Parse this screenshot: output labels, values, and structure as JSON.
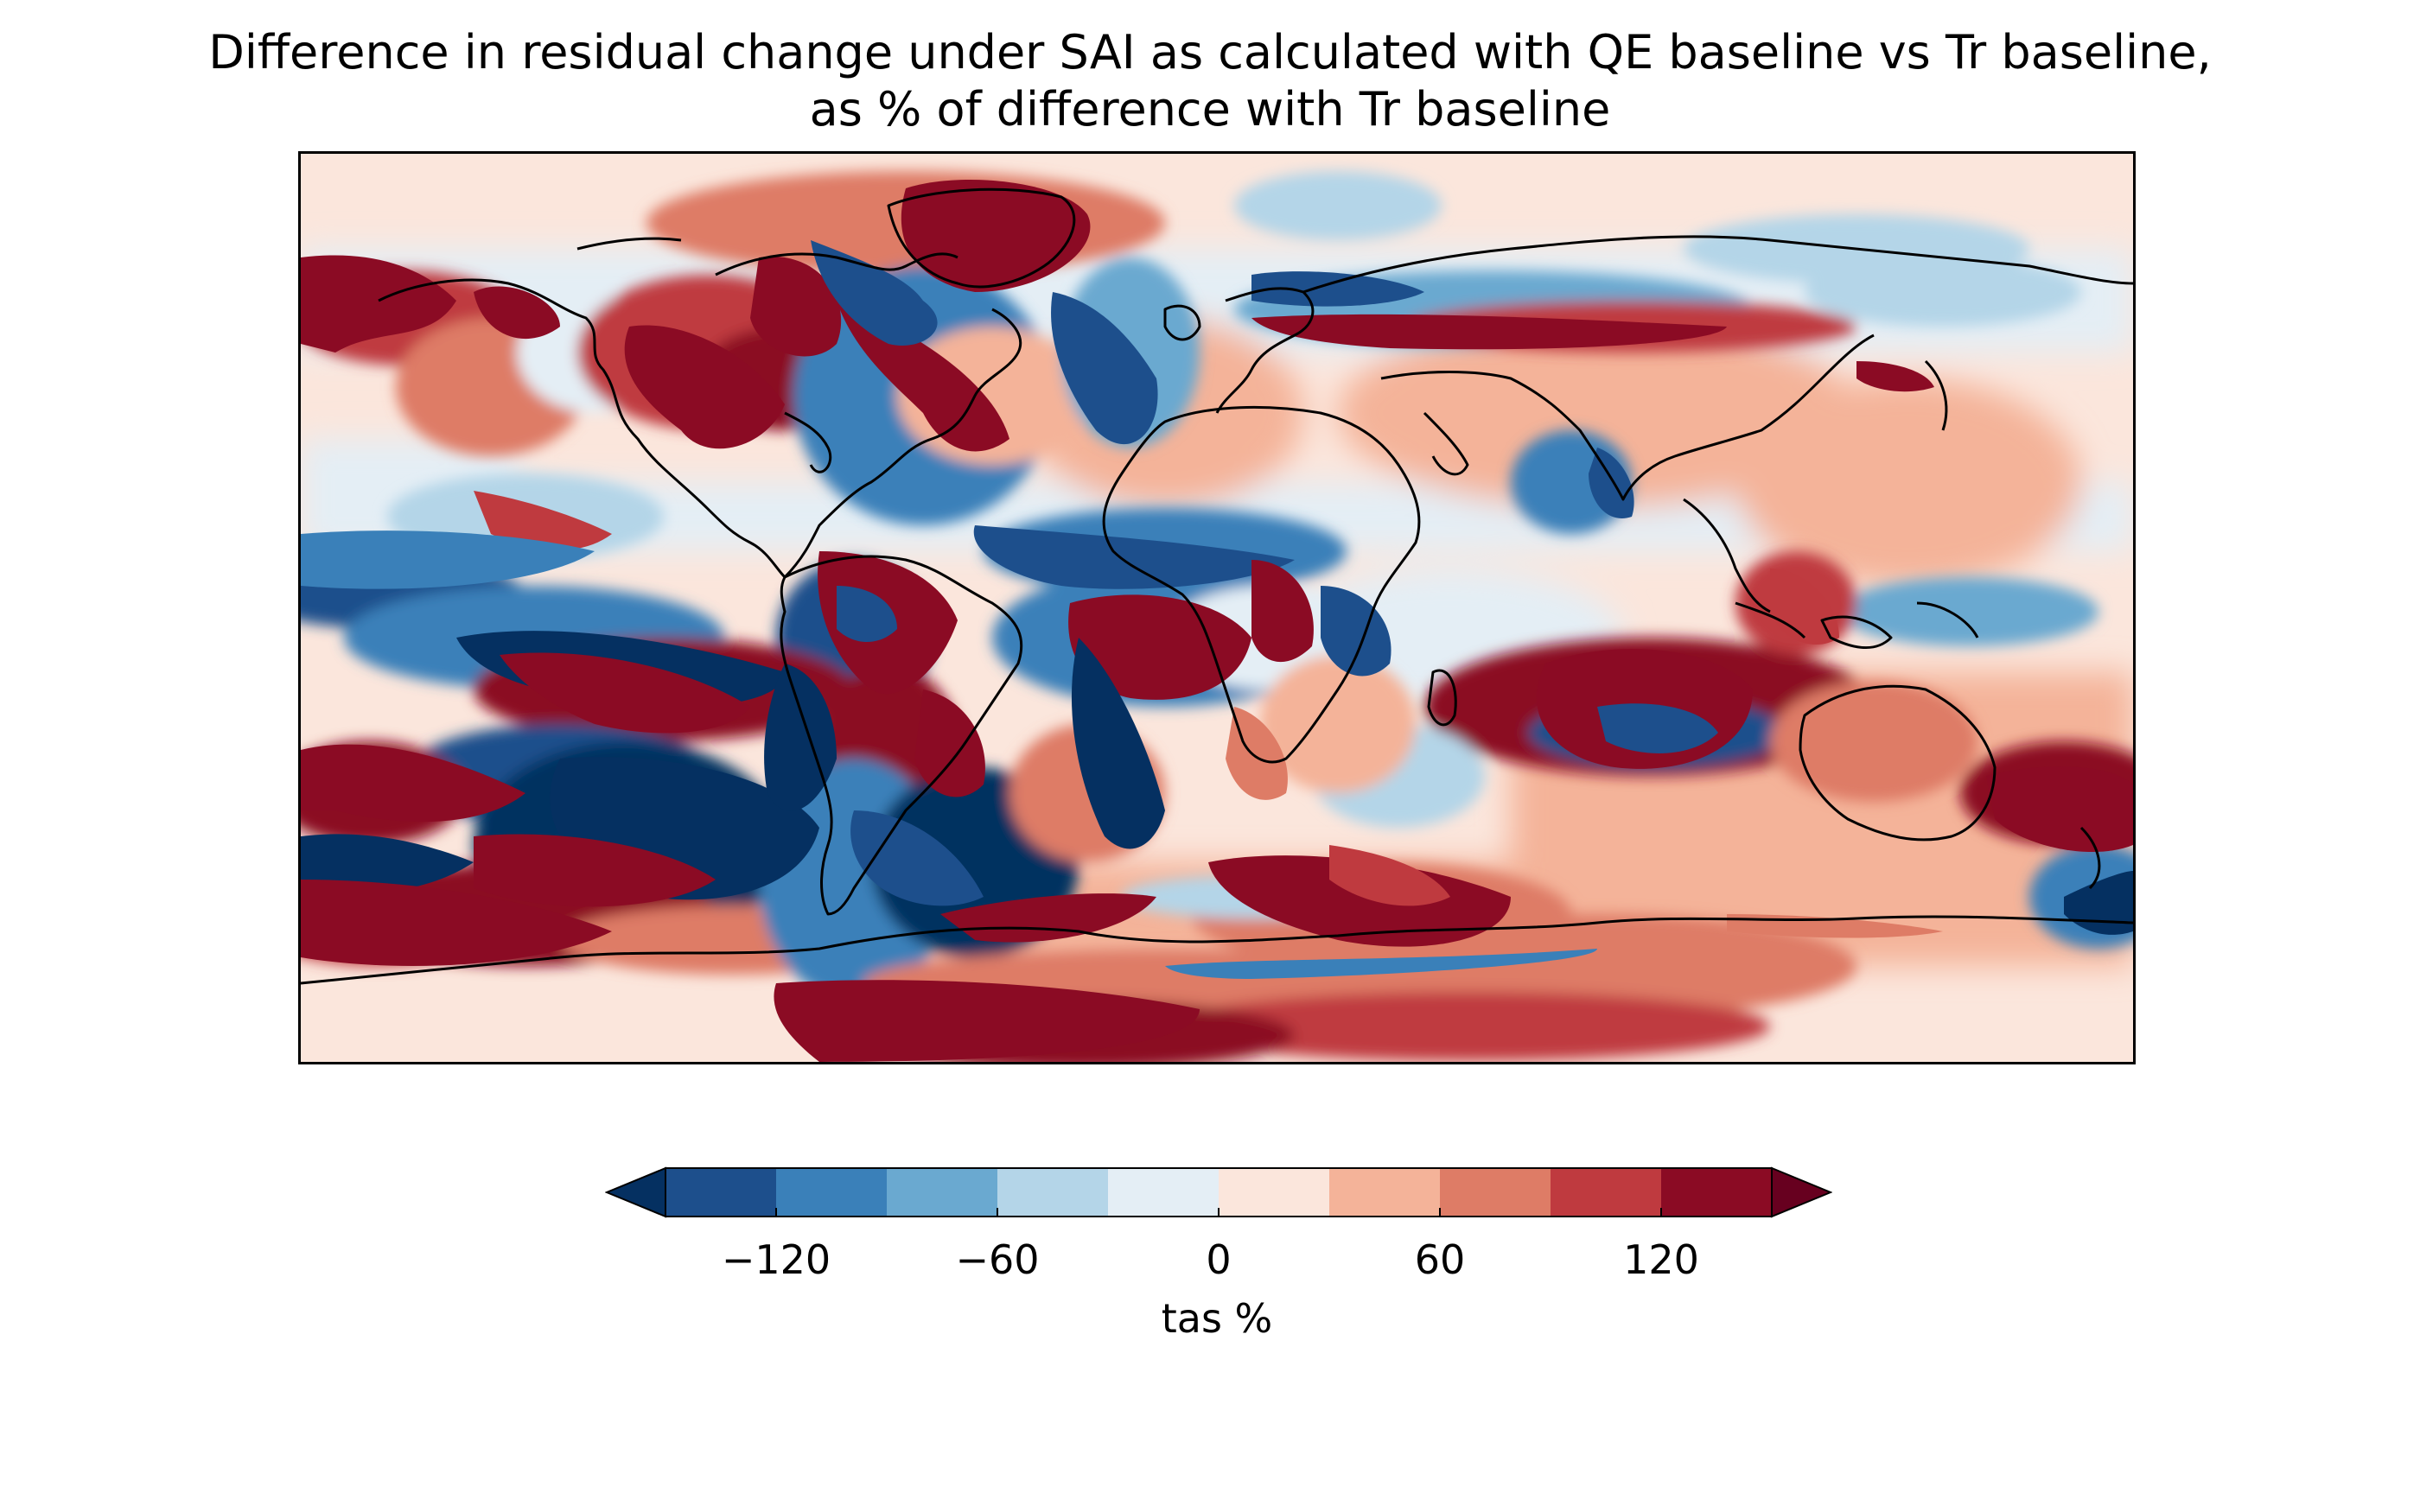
{
  "title": {
    "line1": "Difference in residual change under SAI as calculated with QE baseline vs Tr baseline,",
    "line2": "as % of difference with Tr baseline"
  },
  "colorbar": {
    "label": "tas %",
    "ticks": [
      "−120",
      "−60",
      "0",
      "60",
      "120"
    ],
    "tick_values": [
      -120,
      -60,
      0,
      60,
      120
    ],
    "levels": [
      -150,
      -120,
      -90,
      -60,
      -30,
      0,
      30,
      60,
      90,
      120,
      150
    ],
    "extend": "both",
    "colors": [
      "#053061",
      "#1d4f8c",
      "#3a80b9",
      "#6aa9d0",
      "#b4d5e8",
      "#e4eef5",
      "#fbe6dc",
      "#f4b399",
      "#de7c66",
      "#bf3a3f",
      "#8b0b24",
      "#67001f"
    ]
  },
  "map": {
    "projection": "plate carree",
    "lon_range": [
      -180,
      180
    ],
    "lat_range": [
      -90,
      90
    ],
    "variable": "tas"
  }
}
